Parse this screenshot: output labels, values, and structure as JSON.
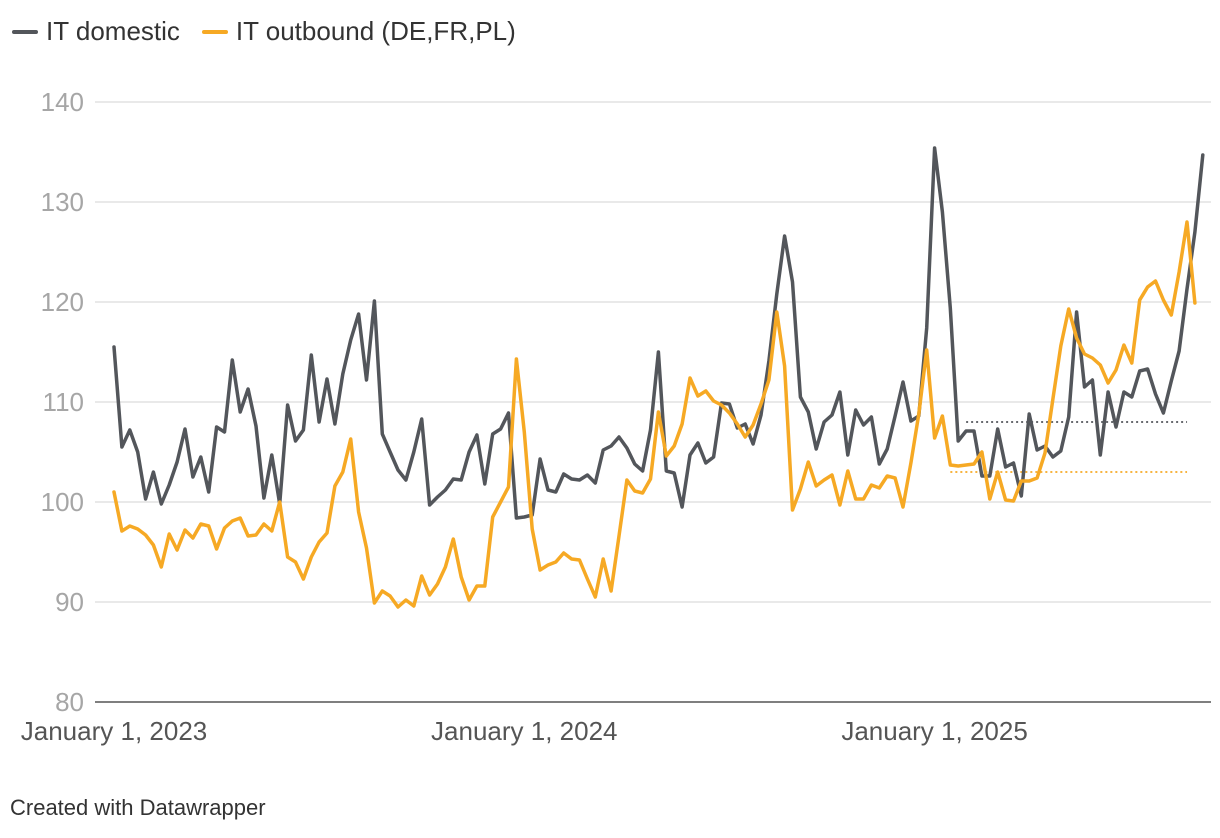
{
  "legend": {
    "items": [
      {
        "label": "IT domestic",
        "color": "#53565b"
      },
      {
        "label": "IT outbound (DE,FR,PL)",
        "color": "#f6a924"
      }
    ]
  },
  "footer": {
    "credit": "Created with Datawrapper"
  },
  "chart_data": {
    "type": "line",
    "title": "",
    "xlabel": "",
    "ylabel": "",
    "ylim": [
      80,
      140
    ],
    "yticks": [
      80,
      90,
      100,
      110,
      120,
      130,
      140
    ],
    "xticks": [
      {
        "label": "January 1, 2023",
        "index": 0
      },
      {
        "label": "January 1, 2024",
        "index": 52
      },
      {
        "label": "January 1, 2025",
        "index": 104
      }
    ],
    "x_count": 137,
    "grid": true,
    "legend_position": "top-left",
    "series": [
      {
        "name": "IT domestic",
        "color": "#53565b",
        "values": [
          115.5,
          105.5,
          107.2,
          105,
          100.3,
          103,
          99.8,
          101.7,
          104,
          107.3,
          102.5,
          104.5,
          101,
          107.5,
          107,
          114.2,
          109,
          111.3,
          107.6,
          100.4,
          104.7,
          99.8,
          109.7,
          106.1,
          107.2,
          114.7,
          108,
          112.3,
          107.8,
          112.8,
          116.2,
          118.8,
          112.2,
          120.1,
          106.8,
          105,
          103.2,
          102.2,
          105,
          108.3,
          99.7,
          100.5,
          101.2,
          102.3,
          102.2,
          105,
          106.7,
          101.8,
          106.8,
          107.3,
          108.9,
          98.4,
          98.5,
          98.7,
          104.3,
          101.2,
          101,
          102.8,
          102.3,
          102.2,
          102.7,
          101.9,
          105.2,
          105.6,
          106.5,
          105.4,
          103.8,
          103.1,
          107.2,
          115,
          103.1,
          102.9,
          99.5,
          104.7,
          105.9,
          103.9,
          104.5,
          109.9,
          109.8,
          107.4,
          107.8,
          105.8,
          108.7,
          114.1,
          120.8,
          126.6,
          122,
          110.5,
          109,
          105.3,
          108,
          108.7,
          111,
          104.7,
          109.2,
          107.7,
          108.5,
          103.8,
          105.3,
          108.6,
          112,
          108.1,
          108.6,
          117.4,
          135.4,
          129,
          119.4,
          106.1,
          107.1,
          107.1,
          102.6,
          102.6,
          107.3,
          103.5,
          103.9,
          100.6,
          108.8,
          105.2,
          105.6,
          104.5,
          105.1,
          108.5,
          119,
          111.5,
          112.2,
          104.7,
          111,
          107.5,
          111,
          110.5,
          113.1,
          113.3,
          110.8,
          108.9,
          112.1,
          115.1,
          121.3,
          127,
          134.7
        ]
      },
      {
        "name": "IT outbound (DE,FR,PL)",
        "color": "#f6a924",
        "values": [
          101,
          97.1,
          97.6,
          97.3,
          96.7,
          95.7,
          93.5,
          96.8,
          95.2,
          97.2,
          96.4,
          97.8,
          97.6,
          95.3,
          97.4,
          98.1,
          98.4,
          96.6,
          96.7,
          97.8,
          97.1,
          100,
          94.5,
          94,
          92.3,
          94.5,
          96,
          96.9,
          101.6,
          103,
          106.3,
          99,
          95.4,
          89.9,
          91.1,
          90.6,
          89.5,
          90.2,
          89.6,
          92.6,
          90.7,
          91.8,
          93.5,
          96.3,
          92.5,
          90.2,
          91.6,
          91.6,
          98.5,
          100,
          101.5,
          114.3,
          107,
          97.3,
          93.2,
          93.7,
          94,
          94.9,
          94.3,
          94.2,
          92.3,
          90.5,
          94.3,
          91.1,
          96.6,
          102.2,
          101.1,
          100.9,
          102.3,
          109,
          104.6,
          105.6,
          107.8,
          112.4,
          110.6,
          111.1,
          110.1,
          109.7,
          108.9,
          107.8,
          106.5,
          107.7,
          109.8,
          112.2,
          119,
          113.6,
          99.2,
          101.3,
          104,
          101.6,
          102.2,
          102.7,
          99.7,
          103.1,
          100.3,
          100.3,
          101.7,
          101.4,
          102.6,
          102.4,
          99.5,
          103.9,
          108.8,
          115.2,
          106.4,
          108.6,
          103.7,
          103.6,
          103.7,
          103.8,
          105,
          100.3,
          103,
          100.2,
          100.1,
          102.1,
          102.1,
          102.4,
          104.9,
          110.3,
          115.6,
          119.3,
          116.4,
          114.8,
          114.4,
          113.7,
          111.9,
          113.2,
          115.7,
          113.9,
          120.2,
          121.5,
          122.1,
          120.2,
          118.7,
          123,
          128,
          119.9
        ]
      }
    ],
    "reference_lines": [
      {
        "series": "IT domestic",
        "value": 108,
        "from_index": 108,
        "to_index": 136
      },
      {
        "series": "IT outbound (DE,FR,PL)",
        "value": 103,
        "from_index": 106,
        "to_index": 136
      }
    ]
  }
}
